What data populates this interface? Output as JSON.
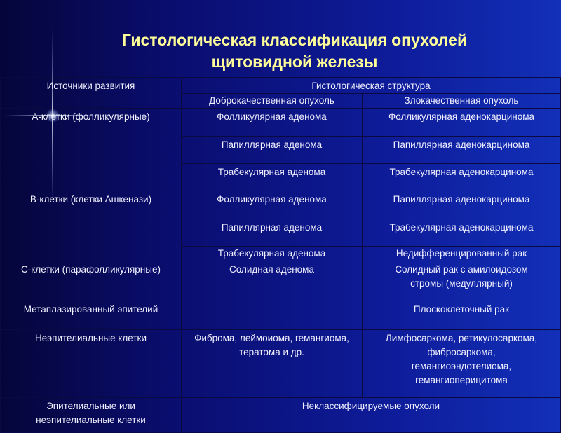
{
  "title": {
    "line1": "Гистологическая классификация опухолей",
    "line2": "щитовидной железы"
  },
  "table": {
    "header": {
      "sources": "Источники развития",
      "structure": "Гистологическая структура",
      "benign": "Доброкачественная опухоль",
      "malignant": "Злокачественная опухоль"
    },
    "rows": [
      {
        "source": "А-клетки (фолликулярные)",
        "pairs": [
          [
            "Фолликулярная аденома",
            "Фолликулярная аденокарцинома"
          ],
          [
            "Папиллярная аденома",
            "Папиллярная аденокарцинома"
          ],
          [
            "Трабекулярная аденома",
            "Трабекулярная аденокарцинома"
          ]
        ]
      },
      {
        "source": "В-клетки (клетки Ашкенази)",
        "pairs": [
          [
            "Фолликулярная аденома",
            "Папиллярная аденокарцинома"
          ],
          [
            "Папиллярная аденома",
            "Трабекулярная аденокарцинома"
          ],
          [
            "Трабекулярная аденома",
            "Недифференцированный рак"
          ]
        ]
      },
      {
        "source": "С-клетки (парафолликулярные)",
        "benign": "Солидная аденома",
        "malignant": [
          "Солидный рак с амилоидозом",
          "стромы (медуллярный)"
        ]
      },
      {
        "source": "Метаплазированный эпителий",
        "benign": "",
        "malignant": "Плоскоклеточный рак"
      },
      {
        "source": "Неэпителиальные клетки",
        "benign": [
          "Фиброма, леймоиома, гемангиома,",
          "тератома и др."
        ],
        "malignant": [
          "Лимфосаркома, ретикулосаркома,",
          "фибросаркома,",
          "гемангиоэндотелиома,",
          "гемангиоперицитома"
        ]
      },
      {
        "source": [
          "Эпителиальные или",
          "неэпителиальные клетки"
        ],
        "merged": "Неклассифицируемые опухоли"
      }
    ]
  }
}
